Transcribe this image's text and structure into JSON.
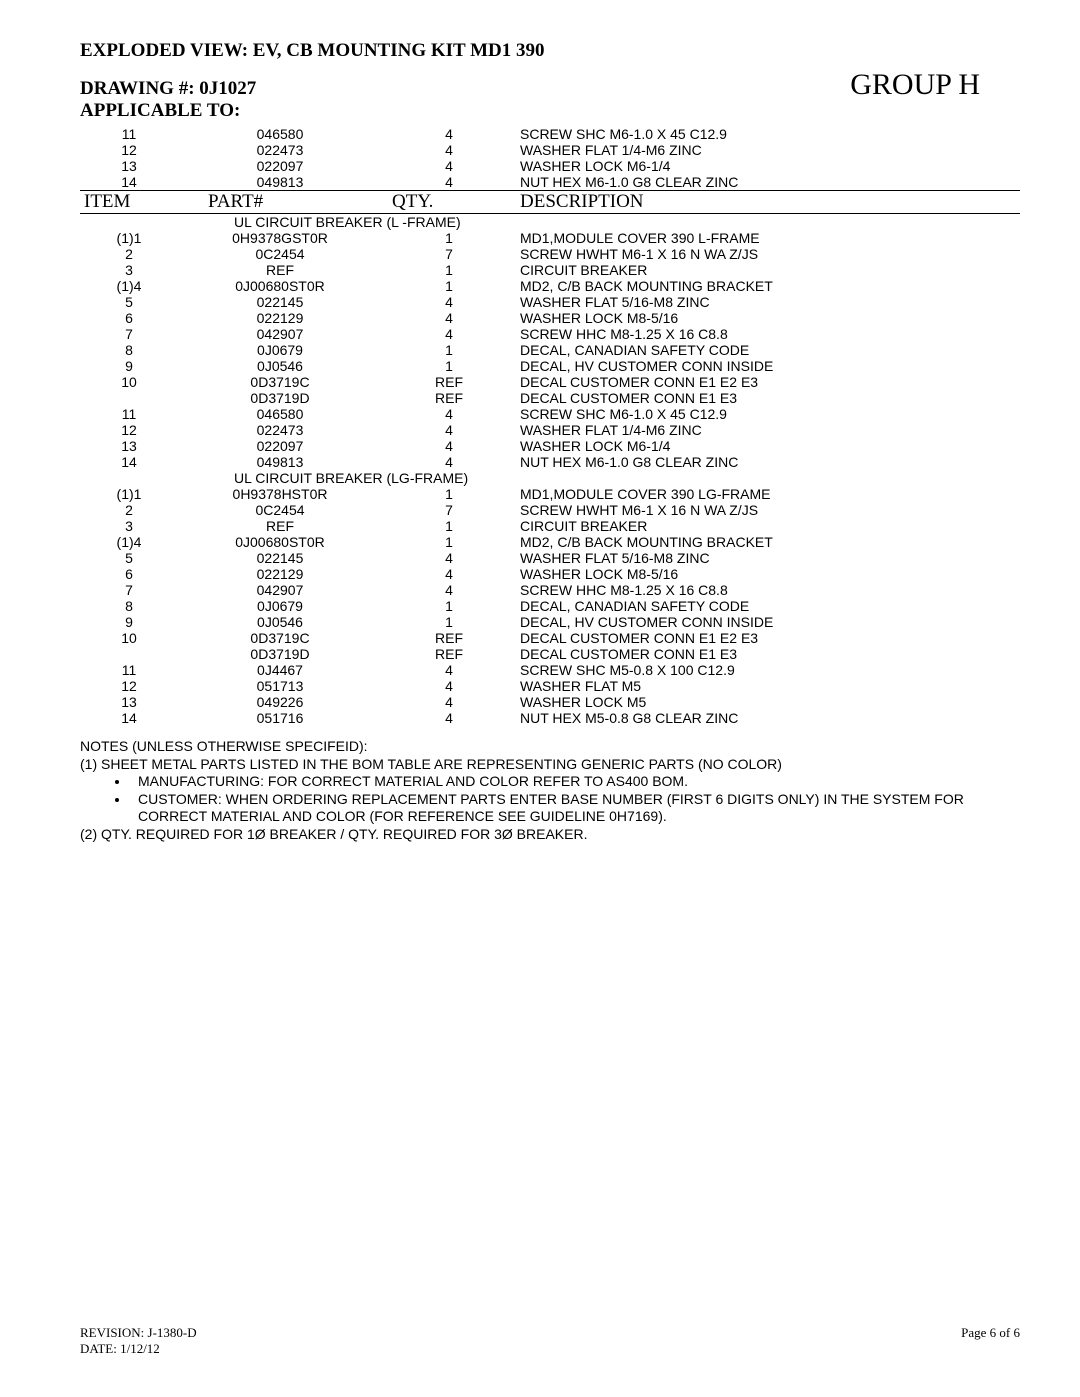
{
  "header": {
    "title": "EXPLODED VIEW: EV, CB MOUNTING KIT MD1 390",
    "drawing": "DRAWING #: 0J1027",
    "applicable": "APPLICABLE TO:",
    "group": "GROUP H"
  },
  "column_headers": {
    "item": "ITEM",
    "part": "PART#",
    "qty": "QTY.",
    "desc": "DESCRIPTION"
  },
  "top_rows": [
    {
      "item": "11",
      "part": "046580",
      "qty": "4",
      "desc": "SCREW SHC M6-1.0 X 45 C12.9"
    },
    {
      "item": "12",
      "part": "022473",
      "qty": "4",
      "desc": "WASHER FLAT 1/4-M6 ZINC"
    },
    {
      "item": "13",
      "part": "022097",
      "qty": "4",
      "desc": "WASHER LOCK M6-1/4"
    },
    {
      "item": "14",
      "part": "049813",
      "qty": "4",
      "desc": "NUT HEX M6-1.0 G8 CLEAR ZINC"
    }
  ],
  "sections": [
    {
      "title": "UL CIRCUIT BREAKER (L -FRAME)",
      "rows": [
        {
          "item": "(1)1",
          "part": "0H9378GST0R",
          "qty": "1",
          "desc": "MD1,MODULE COVER 390 L-FRAME"
        },
        {
          "item": "2",
          "part": "0C2454",
          "qty": "7",
          "desc": "SCREW HWHT M6-1 X 16 N WA Z/JS"
        },
        {
          "item": "3",
          "part": "REF",
          "qty": "1",
          "desc": "CIRCUIT BREAKER"
        },
        {
          "item": "(1)4",
          "part": "0J00680ST0R",
          "qty": "1",
          "desc": "MD2, C/B BACK MOUNTING BRACKET"
        },
        {
          "item": "5",
          "part": "022145",
          "qty": "4",
          "desc": "WASHER FLAT 5/16-M8 ZINC"
        },
        {
          "item": "6",
          "part": "022129",
          "qty": "4",
          "desc": "WASHER LOCK M8-5/16"
        },
        {
          "item": "7",
          "part": "042907",
          "qty": "4",
          "desc": "SCREW HHC M8-1.25 X 16 C8.8"
        },
        {
          "item": "8",
          "part": "0J0679",
          "qty": "1",
          "desc": "DECAL, CANADIAN SAFETY CODE"
        },
        {
          "item": "9",
          "part": "0J0546",
          "qty": "1",
          "desc": "DECAL, HV CUSTOMER CONN INSIDE"
        },
        {
          "item": "10",
          "part": "0D3719C",
          "qty": "REF",
          "desc": "DECAL CUSTOMER CONN E1 E2 E3"
        },
        {
          "item": "",
          "part": "0D3719D",
          "qty": "REF",
          "desc": "DECAL CUSTOMER CONN E1 E3"
        },
        {
          "item": "11",
          "part": "046580",
          "qty": "4",
          "desc": "SCREW SHC M6-1.0 X 45 C12.9"
        },
        {
          "item": "12",
          "part": "022473",
          "qty": "4",
          "desc": "WASHER FLAT 1/4-M6 ZINC"
        },
        {
          "item": "13",
          "part": "022097",
          "qty": "4",
          "desc": "WASHER LOCK M6-1/4"
        },
        {
          "item": "14",
          "part": "049813",
          "qty": "4",
          "desc": "NUT HEX M6-1.0 G8 CLEAR ZINC"
        }
      ]
    },
    {
      "title": "UL CIRCUIT BREAKER (LG-FRAME)",
      "rows": [
        {
          "item": "(1)1",
          "part": "0H9378HST0R",
          "qty": "1",
          "desc": "MD1,MODULE COVER 390 LG-FRAME"
        },
        {
          "item": "2",
          "part": "0C2454",
          "qty": "7",
          "desc": "SCREW HWHT M6-1 X 16 N WA Z/JS"
        },
        {
          "item": "3",
          "part": "REF",
          "qty": "1",
          "desc": "CIRCUIT BREAKER"
        },
        {
          "item": "(1)4",
          "part": "0J00680ST0R",
          "qty": "1",
          "desc": "MD2, C/B BACK MOUNTING BRACKET"
        },
        {
          "item": "5",
          "part": "022145",
          "qty": "4",
          "desc": "WASHER FLAT 5/16-M8 ZINC"
        },
        {
          "item": "6",
          "part": "022129",
          "qty": "4",
          "desc": "WASHER LOCK M8-5/16"
        },
        {
          "item": "7",
          "part": "042907",
          "qty": "4",
          "desc": "SCREW HHC M8-1.25 X 16 C8.8"
        },
        {
          "item": "8",
          "part": "0J0679",
          "qty": "1",
          "desc": "DECAL, CANADIAN SAFETY CODE"
        },
        {
          "item": "9",
          "part": "0J0546",
          "qty": "1",
          "desc": "DECAL, HV CUSTOMER CONN INSIDE"
        },
        {
          "item": "10",
          "part": "0D3719C",
          "qty": "REF",
          "desc": "DECAL CUSTOMER CONN E1 E2 E3"
        },
        {
          "item": "",
          "part": "0D3719D",
          "qty": "REF",
          "desc": "DECAL CUSTOMER CONN E1 E3"
        },
        {
          "item": "11",
          "part": "0J4467",
          "qty": "4",
          "desc": "SCREW SHC M5-0.8 X 100 C12.9"
        },
        {
          "item": "12",
          "part": "051713",
          "qty": "4",
          "desc": "WASHER FLAT M5"
        },
        {
          "item": "13",
          "part": "049226",
          "qty": "4",
          "desc": "WASHER LOCK M5"
        },
        {
          "item": "14",
          "part": "051716",
          "qty": "4",
          "desc": "NUT HEX M5-0.8 G8 CLEAR ZINC"
        }
      ]
    }
  ],
  "notes": {
    "heading": "NOTES (UNLESS OTHERWISE SPECIFEID):",
    "line1": "(1) SHEET METAL PARTS LISTED IN THE BOM TABLE ARE REPRESENTING GENERIC PARTS (NO COLOR)",
    "bullets": [
      "MANUFACTURING: FOR CORRECT MATERIAL AND COLOR REFER TO AS400 BOM.",
      "CUSTOMER: WHEN ORDERING REPLACEMENT PARTS ENTER BASE NUMBER (FIRST 6 DIGITS ONLY) IN THE SYSTEM FOR CORRECT MATERIAL AND COLOR (FOR REFERENCE SEE GUIDELINE 0H7169)."
    ],
    "line2": "(2) QTY. REQUIRED FOR 1Ø BREAKER / QTY. REQUIRED FOR 3Ø BREAKER."
  },
  "footer": {
    "revision": "REVISION: J-1380-D",
    "date": "DATE: 1/12/12",
    "page": "Page 6 of  6"
  }
}
